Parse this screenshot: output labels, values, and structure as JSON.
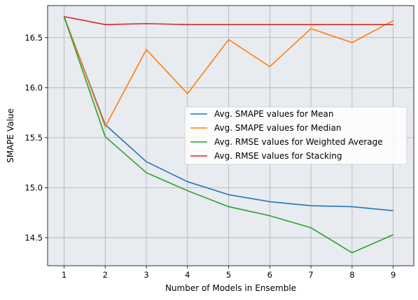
{
  "chart_data": {
    "type": "line",
    "title": "",
    "xlabel": "Number of Models in Ensemble",
    "ylabel": "SMAPE Value",
    "x": [
      1,
      2,
      3,
      4,
      5,
      6,
      7,
      8,
      9
    ],
    "xlim": [
      0.6,
      9.5
    ],
    "ylim": [
      14.22,
      16.82
    ],
    "xticks": [
      "1",
      "2",
      "3",
      "4",
      "5",
      "6",
      "7",
      "8",
      "9"
    ],
    "yticks": [
      "14.5",
      "15.0",
      "15.5",
      "16.0",
      "16.5"
    ],
    "ytick_values": [
      14.5,
      15.0,
      15.5,
      16.0,
      16.5
    ],
    "grid": true,
    "background": "#e8ebef",
    "legend_position": "center-right",
    "series": [
      {
        "name": "Avg. SMAPE values for Mean",
        "color": "#1f77b4",
        "values": [
          16.71,
          15.63,
          15.26,
          15.06,
          14.93,
          14.86,
          14.82,
          14.81,
          14.77
        ]
      },
      {
        "name": "Avg. SMAPE values for Median",
        "color": "#ff7f0e",
        "values": [
          16.71,
          15.61,
          16.38,
          15.94,
          16.48,
          16.21,
          16.59,
          16.45,
          16.67
        ]
      },
      {
        "name": "Avg. RMSE values for Weighted Average",
        "color": "#2ca02c",
        "values": [
          16.71,
          15.51,
          15.15,
          14.97,
          14.81,
          14.72,
          14.6,
          14.35,
          14.53
        ]
      },
      {
        "name": "Avg. RMSE values for Stacking",
        "color": "#d62728",
        "values": [
          16.71,
          16.63,
          16.64,
          16.63,
          16.63,
          16.63,
          16.63,
          16.63,
          16.63
        ]
      }
    ]
  }
}
